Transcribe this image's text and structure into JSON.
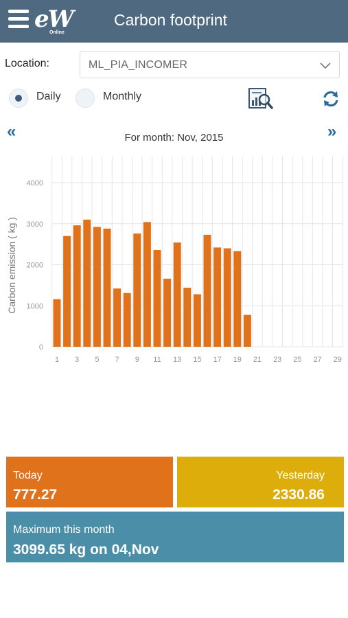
{
  "header": {
    "title": "Carbon footprint",
    "logo_main": "eW",
    "logo_sub": "Online",
    "bg_color": "#4f6a80"
  },
  "filters": {
    "location_label": "Location:",
    "location_value": "ML_PIA_INCOMER",
    "mode_daily": "Daily",
    "mode_monthly": "Monthly",
    "selected_mode": "Daily"
  },
  "navigation": {
    "prev": "«",
    "next": "»",
    "month_label": "For month: Nov, 2015"
  },
  "chart_data": {
    "type": "bar",
    "ylabel": "Carbon emission ( kg )",
    "xlabel": "",
    "ylim": [
      0,
      4000
    ],
    "yticks": [
      0,
      1000,
      2000,
      3000,
      4000
    ],
    "xlim": [
      1,
      30
    ],
    "xticks": [
      1,
      3,
      5,
      7,
      9,
      11,
      13,
      15,
      17,
      19,
      21,
      23,
      25,
      27,
      29
    ],
    "bar_color": "#e0721c",
    "grid": true,
    "x": [
      1,
      2,
      3,
      4,
      5,
      6,
      7,
      8,
      9,
      10,
      11,
      12,
      13,
      14,
      15,
      16,
      17,
      18,
      19,
      20
    ],
    "values": [
      1160,
      2700,
      2960,
      3099.65,
      2920,
      2880,
      1420,
      1310,
      2760,
      3040,
      2360,
      1660,
      2540,
      1440,
      1280,
      2730,
      2420,
      2400,
      2330.86,
      777.27
    ]
  },
  "cards": {
    "today_label": "Today",
    "today_value": "777.27",
    "yesterday_label": "Yesterday",
    "yesterday_value": "2330.86",
    "max_label": "Maximum this month",
    "max_value": "3099.65 kg on 04,Nov",
    "colors": {
      "today": "#e0721c",
      "yesterday": "#ddad0c",
      "max": "#4a8ea8"
    }
  },
  "icons": {
    "menu": "hamburger-menu-icon",
    "dropdown": "chevron-down-icon",
    "report": "report-search-icon",
    "refresh": "refresh-icon"
  }
}
